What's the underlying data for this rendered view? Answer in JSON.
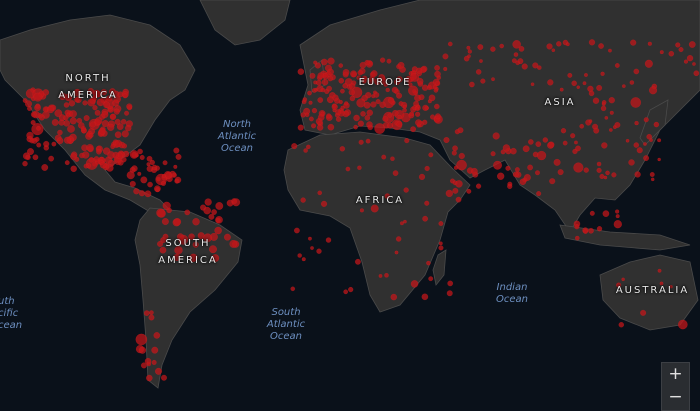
{
  "map": {
    "continents": {
      "north_america": [
        "NORTH",
        "AMERICA"
      ],
      "europe": "EUROPE",
      "asia": "ASIA",
      "africa": "AFRICA",
      "south_america": [
        "SOUTH",
        "AMERICA"
      ],
      "australia": "AUSTRALIA"
    },
    "oceans": {
      "north_atlantic": [
        "North",
        "Atlantic",
        "Ocean"
      ],
      "south_atlantic": [
        "South",
        "Atlantic",
        "Ocean"
      ],
      "indian": [
        "Indian",
        "Ocean"
      ],
      "south_pacific": [
        "uth",
        "cific",
        "cean"
      ]
    },
    "marker_color": "#c0161a",
    "land_color": "#303030",
    "water_color": "#0a111a"
  },
  "zoom_control": {
    "zoom_in": "+",
    "zoom_out": "−"
  }
}
